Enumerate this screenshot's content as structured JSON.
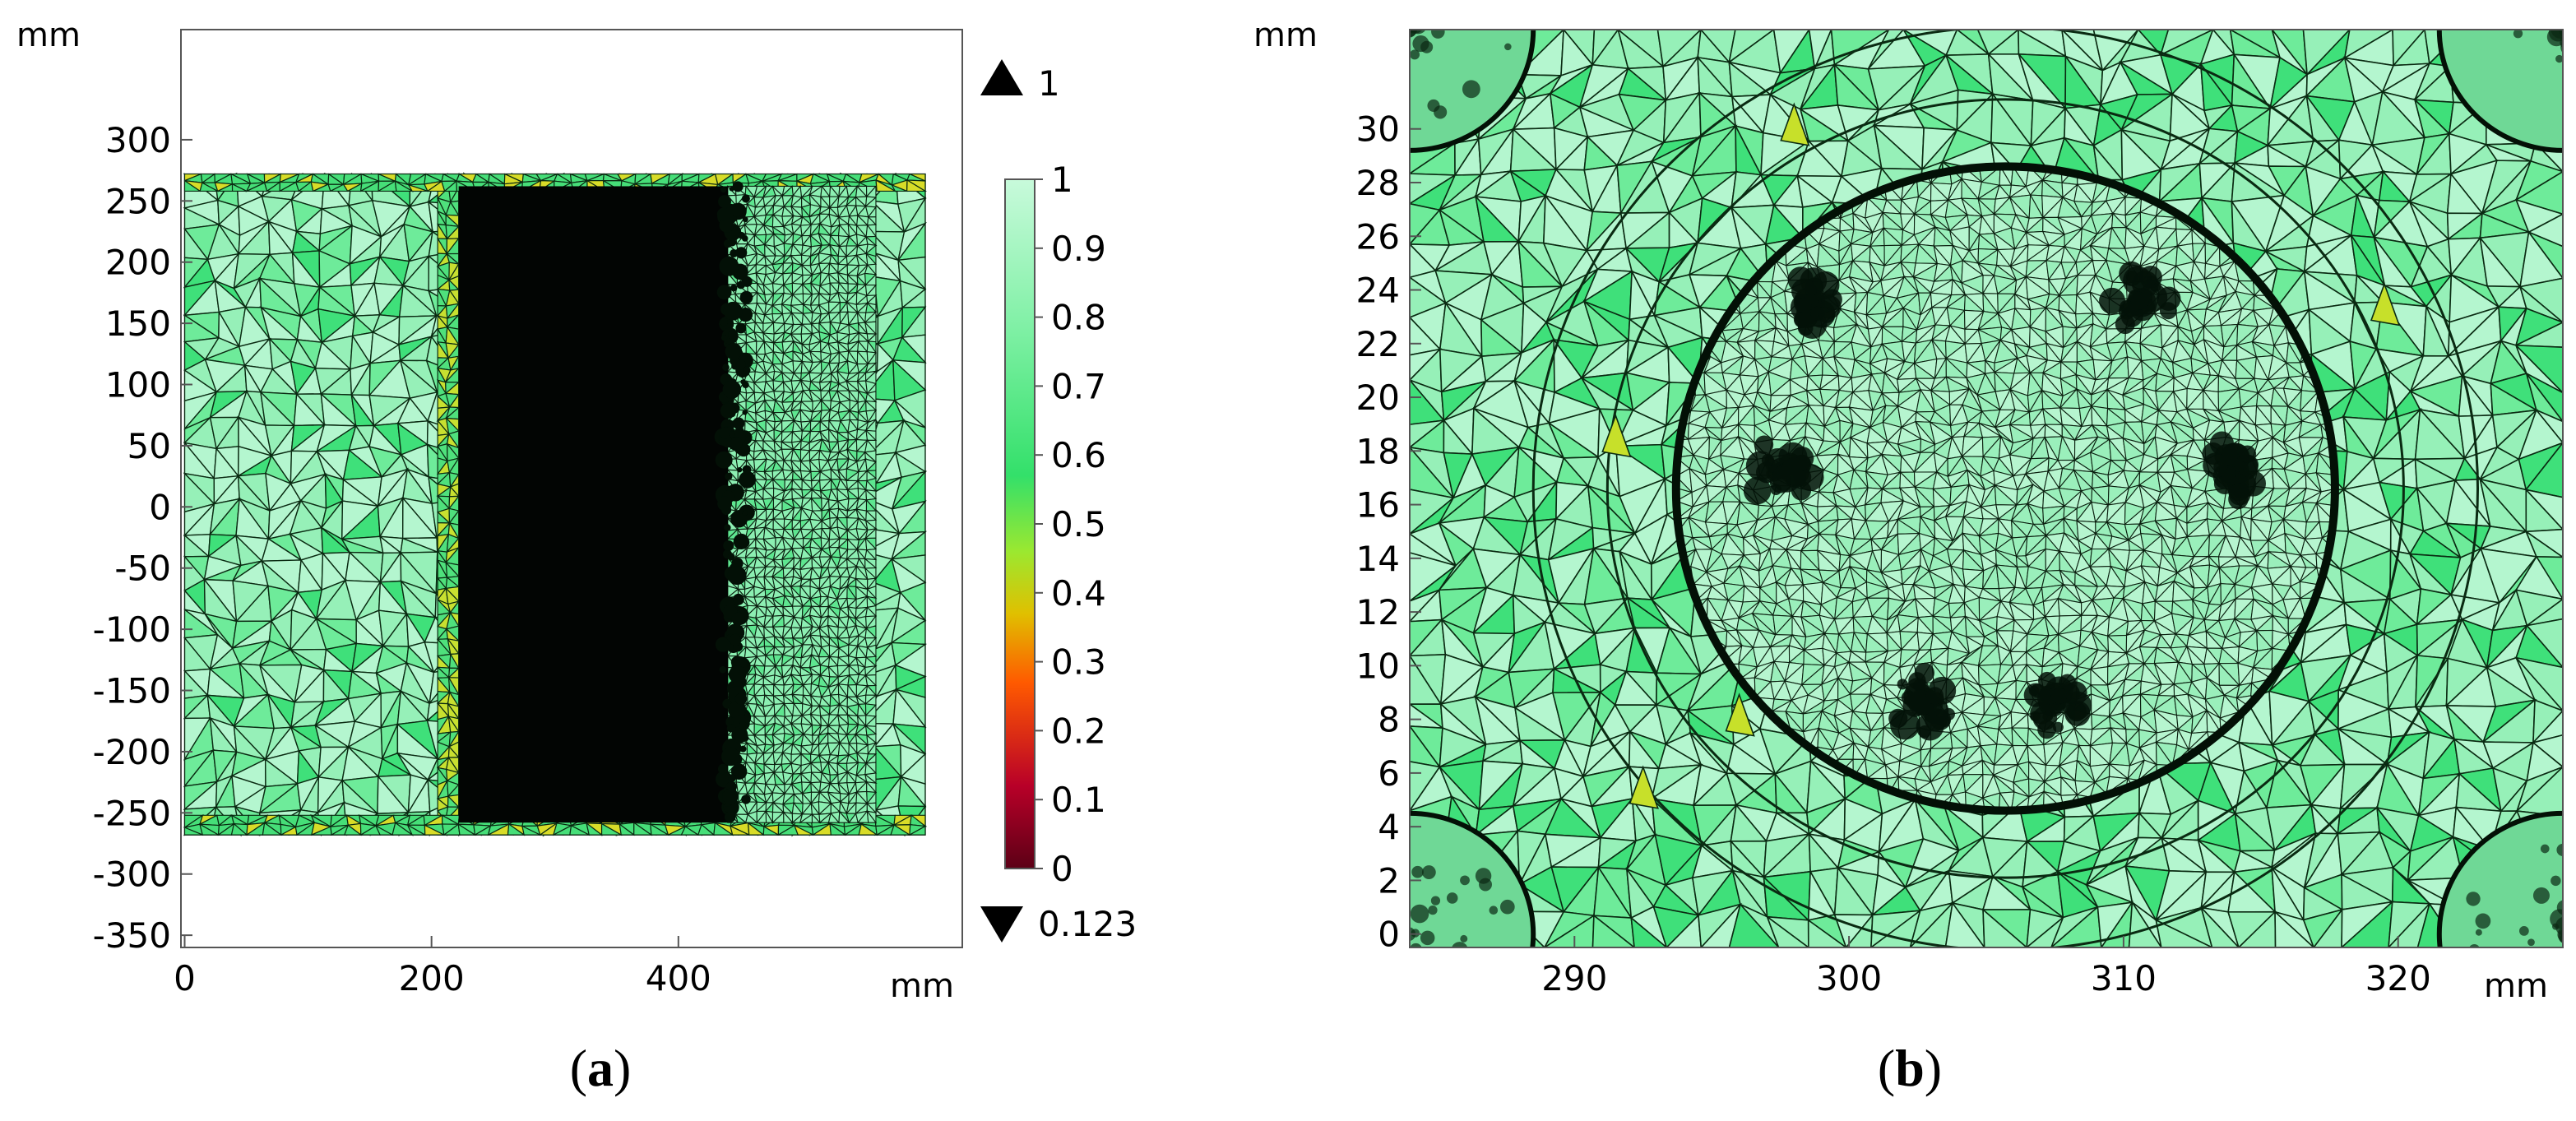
{
  "chart_data": [
    {
      "id": "a",
      "type": "heatmap",
      "caption_letter": "a",
      "caption_open": "(",
      "caption_close": ")",
      "x_unit": "mm",
      "y_unit": "mm",
      "xlim": [
        -3,
        630
      ],
      "ylim": [
        -360,
        390
      ],
      "x_ticks": [
        0,
        200,
        400
      ],
      "y_ticks": [
        300,
        250,
        200,
        150,
        100,
        50,
        0,
        -50,
        -100,
        -150,
        -200,
        -250,
        -300,
        -350
      ],
      "domain": {
        "x": [
          0,
          600
        ],
        "y": [
          -268,
          272
        ]
      },
      "dense_region": {
        "x": [
          222,
          440
        ],
        "y": [
          -258,
          262
        ]
      },
      "transition_region": {
        "x": [
          440,
          560
        ],
        "y": [
          -258,
          262
        ]
      },
      "boundary_strip_x": [
        205,
        222
      ]
    },
    {
      "id": "b",
      "type": "heatmap",
      "caption_letter": "b",
      "caption_open": "(",
      "caption_close": ")",
      "x_unit": "mm",
      "y_unit": "mm",
      "xlim": [
        284,
        326
      ],
      "ylim": [
        -0.5,
        33.7
      ],
      "x_ticks": [
        290,
        300,
        310,
        320
      ],
      "y_ticks": [
        30,
        28,
        26,
        24,
        22,
        20,
        18,
        16,
        14,
        12,
        10,
        8,
        6,
        4,
        2,
        0
      ],
      "center": [
        305.7,
        16.6
      ],
      "inner_radius": 12.0,
      "ring_radii": [
        14.5,
        17.2
      ],
      "dark_clusters": [
        [
          297.5,
          17.3
        ],
        [
          314.0,
          17.3
        ],
        [
          298.6,
          23.6
        ],
        [
          310.6,
          23.6
        ],
        [
          302.6,
          8.6
        ],
        [
          307.4,
          8.6
        ]
      ],
      "corner_centers": [
        [
          284,
          0
        ],
        [
          326,
          0
        ],
        [
          284,
          33.7
        ],
        [
          326,
          33.7
        ]
      ],
      "corner_radius": 4.5
    }
  ],
  "colorbar": {
    "ticks": [
      1,
      0.9,
      0.8,
      0.7,
      0.6,
      0.5,
      0.4,
      0.3,
      0.2,
      0.1,
      0
    ],
    "max_marker": "1",
    "min_marker": "0.123",
    "stops": [
      "#5c0016",
      "#b80028",
      "#ff5a00",
      "#e0c000",
      "#9be830",
      "#33e06a",
      "#7ef0a4",
      "#c8fadb"
    ]
  }
}
